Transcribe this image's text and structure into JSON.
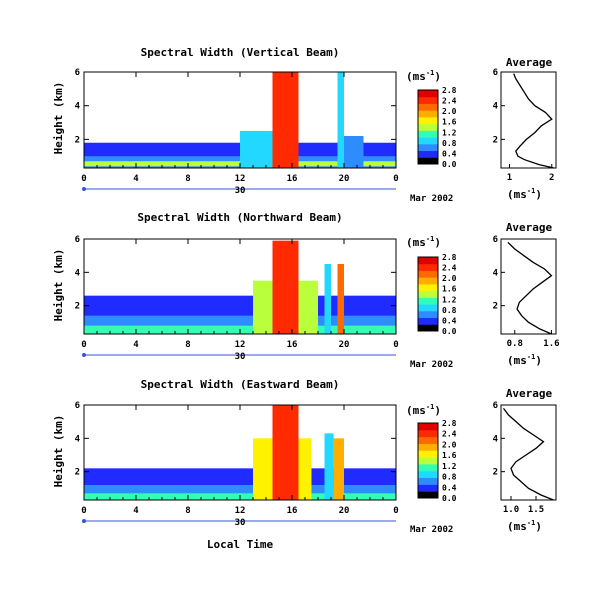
{
  "figure": {
    "xlabel": "Local Time",
    "date_label": "Mar 2002",
    "day_label": "30",
    "colorbar_unit": "(ms",
    "colorbar_unit_exp": "-1",
    "colorbar_unit_close": ")",
    "avg_title": "Average",
    "avg_xlabel": "(ms",
    "avg_xlabel_exp": "-1",
    "avg_xlabel_close": ")",
    "ylabel": "Height (km)"
  },
  "colorbar_ticks": [
    "2.8",
    "2.4",
    "2.0",
    "1.6",
    "1.2",
    "0.8",
    "0.4",
    "0.0"
  ],
  "colors": {
    "scale": [
      "#000000",
      "#1f2bff",
      "#2f8cff",
      "#22d8ff",
      "#33ffb4",
      "#b9ff3c",
      "#fff200",
      "#ffae00",
      "#ff6a00",
      "#ff2a00",
      "#e00000"
    ],
    "text": "#000000",
    "axis_blue": "#3355dd"
  },
  "chart_data": [
    {
      "type": "heatmap",
      "title": "Spectral Width (Vertical Beam)",
      "x_ticks": [
        "0",
        "4",
        "8",
        "12",
        "16",
        "20",
        "0"
      ],
      "y_ticks": [
        "2",
        "4",
        "6"
      ],
      "xlim": [
        0,
        24
      ],
      "ylim": [
        0.3,
        6.0
      ],
      "layers": [
        {
          "x0": 0,
          "x1": 24,
          "y0": 0.3,
          "y1": 1.8,
          "level": 1
        },
        {
          "x0": 0,
          "x1": 24,
          "y0": 0.3,
          "y1": 1.0,
          "level": 2
        },
        {
          "x0": 0,
          "x1": 24,
          "y0": 0.4,
          "y1": 0.7,
          "level": 5
        },
        {
          "x0": 12,
          "x1": 14.5,
          "y0": 0.3,
          "y1": 2.5,
          "level": 3
        },
        {
          "x0": 14.5,
          "x1": 16.5,
          "y0": 0.3,
          "y1": 6.0,
          "level": 9
        },
        {
          "x0": 19.5,
          "x1": 20.0,
          "y0": 0.3,
          "y1": 6.0,
          "level": 3
        },
        {
          "x0": 20.0,
          "x1": 21.5,
          "y0": 0.3,
          "y1": 2.2,
          "level": 2
        }
      ],
      "colorbar": {
        "min": 0,
        "max": 2.8
      },
      "average": {
        "xlim": [
          0.8,
          2.1
        ],
        "x_ticks": [
          "1",
          "2"
        ],
        "y_ticks": [
          "2",
          "4",
          "6"
        ],
        "heights": [
          0.3,
          0.5,
          0.8,
          1.0,
          1.3,
          1.6,
          2.0,
          2.4,
          2.8,
          3.2,
          3.6,
          4.0,
          4.4,
          4.8,
          5.2,
          5.6,
          5.9
        ],
        "values": [
          2.05,
          1.7,
          1.35,
          1.2,
          1.15,
          1.25,
          1.4,
          1.6,
          1.75,
          2.0,
          1.85,
          1.6,
          1.45,
          1.35,
          1.25,
          1.15,
          1.1
        ]
      }
    },
    {
      "type": "heatmap",
      "title": "Spectral Width (Northward Beam)",
      "x_ticks": [
        "0",
        "4",
        "8",
        "12",
        "16",
        "20",
        "0"
      ],
      "y_ticks": [
        "2",
        "4",
        "6"
      ],
      "xlim": [
        0,
        24
      ],
      "ylim": [
        0.3,
        6.0
      ],
      "layers": [
        {
          "x0": 0,
          "x1": 24,
          "y0": 0.3,
          "y1": 2.6,
          "level": 1
        },
        {
          "x0": 0,
          "x1": 24,
          "y0": 0.3,
          "y1": 1.4,
          "level": 2
        },
        {
          "x0": 0,
          "x1": 24,
          "y0": 0.3,
          "y1": 0.8,
          "level": 4
        },
        {
          "x0": 13,
          "x1": 18,
          "y0": 0.3,
          "y1": 3.5,
          "level": 5
        },
        {
          "x0": 14.5,
          "x1": 16.5,
          "y0": 0.3,
          "y1": 5.9,
          "level": 9
        },
        {
          "x0": 18.5,
          "x1": 19.0,
          "y0": 0.3,
          "y1": 4.5,
          "level": 3
        },
        {
          "x0": 19.5,
          "x1": 20.0,
          "y0": 0.3,
          "y1": 4.5,
          "level": 8
        }
      ],
      "colorbar": {
        "min": 0,
        "max": 2.8
      },
      "average": {
        "xlim": [
          0.5,
          1.7
        ],
        "x_ticks": [
          "0.8",
          "1.6"
        ],
        "y_ticks": [
          "2",
          "4",
          "6"
        ],
        "heights": [
          0.3,
          0.6,
          1.0,
          1.4,
          1.8,
          2.2,
          2.6,
          3.0,
          3.4,
          3.8,
          4.2,
          4.6,
          5.0,
          5.4,
          5.8
        ],
        "values": [
          1.6,
          1.35,
          1.1,
          0.95,
          0.85,
          0.9,
          1.05,
          1.2,
          1.4,
          1.6,
          1.45,
          1.2,
          1.0,
          0.8,
          0.65
        ]
      }
    },
    {
      "type": "heatmap",
      "title": "Spectral Width (Eastward Beam)",
      "x_ticks": [
        "0",
        "4",
        "8",
        "12",
        "16",
        "20",
        "0"
      ],
      "y_ticks": [
        "2",
        "4",
        "6"
      ],
      "xlim": [
        0,
        24
      ],
      "ylim": [
        0.3,
        6.0
      ],
      "layers": [
        {
          "x0": 0,
          "x1": 24,
          "y0": 0.3,
          "y1": 2.2,
          "level": 1
        },
        {
          "x0": 0,
          "x1": 24,
          "y0": 0.3,
          "y1": 1.2,
          "level": 2
        },
        {
          "x0": 0,
          "x1": 24,
          "y0": 0.3,
          "y1": 0.7,
          "level": 4
        },
        {
          "x0": 13,
          "x1": 17.5,
          "y0": 0.3,
          "y1": 4.0,
          "level": 6
        },
        {
          "x0": 14.5,
          "x1": 16.5,
          "y0": 0.3,
          "y1": 6.0,
          "level": 9
        },
        {
          "x0": 18.5,
          "x1": 19.2,
          "y0": 0.3,
          "y1": 4.3,
          "level": 3
        },
        {
          "x0": 19.2,
          "x1": 20.0,
          "y0": 0.3,
          "y1": 4.0,
          "level": 7
        }
      ],
      "colorbar": {
        "min": 0,
        "max": 2.8
      },
      "average": {
        "xlim": [
          0.8,
          1.9
        ],
        "x_ticks": [
          "1.0",
          "1.5"
        ],
        "y_ticks": [
          "2",
          "4",
          "6"
        ],
        "heights": [
          0.3,
          0.6,
          1.0,
          1.4,
          1.8,
          2.2,
          2.6,
          3.0,
          3.4,
          3.8,
          4.2,
          4.6,
          5.0,
          5.4,
          5.8
        ],
        "values": [
          1.85,
          1.6,
          1.35,
          1.2,
          1.05,
          1.0,
          1.1,
          1.3,
          1.5,
          1.65,
          1.45,
          1.25,
          1.1,
          0.95,
          0.85
        ]
      }
    }
  ]
}
